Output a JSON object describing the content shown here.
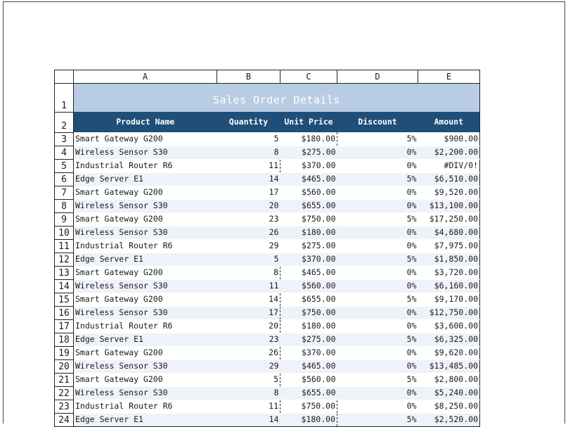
{
  "columns": [
    "A",
    "B",
    "C",
    "D",
    "E"
  ],
  "title": "Sales Order Details",
  "title_row_number": "1",
  "header_row_number": "2",
  "headers": {
    "product": "Product Name",
    "quantity": "Quantity",
    "unit_price": "Unit Price",
    "discount": "Discount",
    "amount": "Amount"
  },
  "colors": {
    "title_fill": "#b8cce4",
    "header_fill": "#1f4e79",
    "band_fill": "#eef3fa"
  },
  "rows": [
    {
      "n": "3",
      "product": "Smart Gateway G200",
      "qty": "5",
      "price": "$180.00",
      "disc": "5%",
      "amount": "$900.00"
    },
    {
      "n": "4",
      "product": "Wireless Sensor S30",
      "qty": "8",
      "price": "$275.00",
      "disc": "0%",
      "amount": "$2,200.00"
    },
    {
      "n": "5",
      "product": "Industrial Router R6",
      "qty": "11",
      "price": "$370.00",
      "disc": "0%",
      "amount": "#DIV/0!"
    },
    {
      "n": "6",
      "product": "Edge Server E1",
      "qty": "14",
      "price": "$465.00",
      "disc": "5%",
      "amount": "$6,510.00"
    },
    {
      "n": "7",
      "product": "Smart Gateway G200",
      "qty": "17",
      "price": "$560.00",
      "disc": "0%",
      "amount": "$9,520.00"
    },
    {
      "n": "8",
      "product": "Wireless Sensor S30",
      "qty": "20",
      "price": "$655.00",
      "disc": "0%",
      "amount": "$13,100.00"
    },
    {
      "n": "9",
      "product": "Smart Gateway G200",
      "qty": "23",
      "price": "$750.00",
      "disc": "5%",
      "amount": "$17,250.00"
    },
    {
      "n": "10",
      "product": "Wireless Sensor S30",
      "qty": "26",
      "price": "$180.00",
      "disc": "0%",
      "amount": "$4,680.00"
    },
    {
      "n": "11",
      "product": "Industrial Router R6",
      "qty": "29",
      "price": "$275.00",
      "disc": "0%",
      "amount": "$7,975.00"
    },
    {
      "n": "12",
      "product": "Edge Server E1",
      "qty": "5",
      "price": "$370.00",
      "disc": "5%",
      "amount": "$1,850.00"
    },
    {
      "n": "13",
      "product": "Smart Gateway G200",
      "qty": "8",
      "price": "$465.00",
      "disc": "0%",
      "amount": "$3,720.00"
    },
    {
      "n": "14",
      "product": "Wireless Sensor S30",
      "qty": "11",
      "price": "$560.00",
      "disc": "0%",
      "amount": "$6,160.00"
    },
    {
      "n": "15",
      "product": "Smart Gateway G200",
      "qty": "14",
      "price": "$655.00",
      "disc": "5%",
      "amount": "$9,170.00"
    },
    {
      "n": "16",
      "product": "Wireless Sensor S30",
      "qty": "17",
      "price": "$750.00",
      "disc": "0%",
      "amount": "$12,750.00"
    },
    {
      "n": "17",
      "product": "Industrial Router R6",
      "qty": "20",
      "price": "$180.00",
      "disc": "0%",
      "amount": "$3,600.00"
    },
    {
      "n": "18",
      "product": "Edge Server E1",
      "qty": "23",
      "price": "$275.00",
      "disc": "5%",
      "amount": "$6,325.00"
    },
    {
      "n": "19",
      "product": "Smart Gateway G200",
      "qty": "26",
      "price": "$370.00",
      "disc": "0%",
      "amount": "$9,620.00"
    },
    {
      "n": "20",
      "product": "Wireless Sensor S30",
      "qty": "29",
      "price": "$465.00",
      "disc": "0%",
      "amount": "$13,485.00"
    },
    {
      "n": "21",
      "product": "Smart Gateway G200",
      "qty": "5",
      "price": "$560.00",
      "disc": "5%",
      "amount": "$2,800.00"
    },
    {
      "n": "22",
      "product": "Wireless Sensor S30",
      "qty": "8",
      "price": "$655.00",
      "disc": "0%",
      "amount": "$5,240.00"
    },
    {
      "n": "23",
      "product": "Industrial Router R6",
      "qty": "11",
      "price": "$750.00",
      "disc": "0%",
      "amount": "$8,250.00"
    },
    {
      "n": "24",
      "product": "Edge Server E1",
      "qty": "14",
      "price": "$180.00",
      "disc": "5%",
      "amount": "$2,520.00"
    }
  ]
}
